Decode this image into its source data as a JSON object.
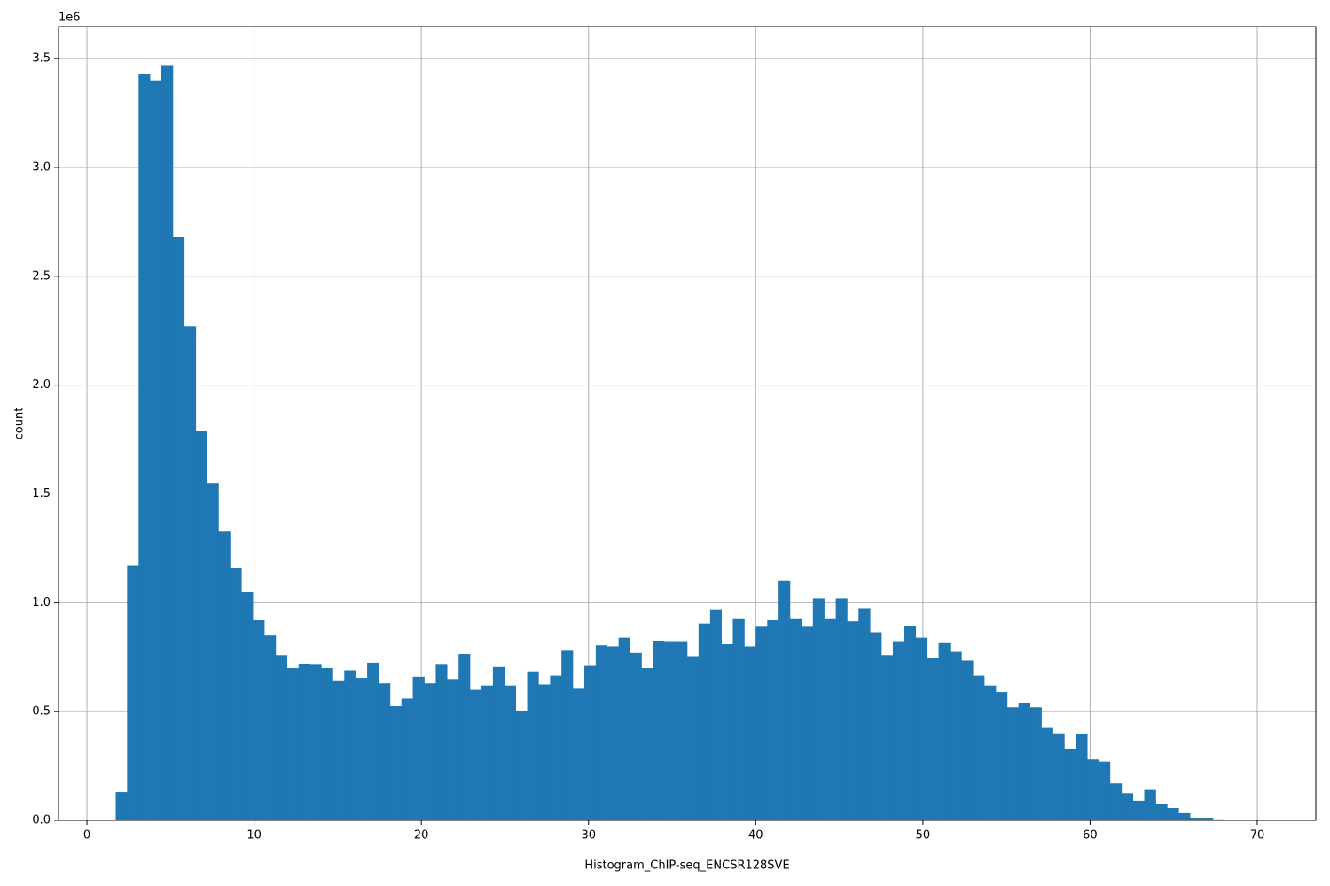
{
  "chart_data": {
    "type": "histogram",
    "x_label": "Histogram_ChIP-seq_ENCSR128SVE",
    "y_label": "count",
    "y_offset_text": "1e6",
    "color": "#1f77b4",
    "grid": true,
    "xlim": [
      -1.7,
      73.5
    ],
    "ylim": [
      0,
      3.647
    ],
    "xticks": [
      0,
      10,
      20,
      30,
      40,
      50,
      60,
      70
    ],
    "yticks": [
      {
        "value": 0,
        "label": "0.0"
      },
      0.5,
      {
        "value": 1,
        "label": "1.0"
      },
      1.5,
      {
        "value": 2,
        "label": "2.0"
      },
      2.5,
      {
        "value": 3,
        "label": "3.0"
      },
      3.5
    ],
    "bins": [
      1.72,
      2.4,
      3.09,
      3.77,
      4.45,
      5.14,
      5.82,
      6.51,
      7.19,
      7.87,
      8.56,
      9.24,
      9.92,
      10.61,
      11.29,
      11.97,
      12.66,
      13.34,
      14.02,
      14.71,
      15.39,
      16.08,
      16.76,
      17.44,
      18.13,
      18.81,
      19.49,
      20.18,
      20.86,
      21.54,
      22.23,
      22.91,
      23.6,
      24.28,
      24.96,
      25.65,
      26.33,
      27.01,
      27.7,
      28.38,
      29.06,
      29.75,
      30.43,
      31.11,
      31.8,
      32.48,
      33.17,
      33.85,
      34.53,
      35.22,
      35.9,
      36.58,
      37.27,
      37.95,
      38.63,
      39.32,
      40.0,
      40.69,
      41.37,
      42.05,
      42.74,
      43.42,
      44.1,
      44.79,
      45.47,
      46.15,
      46.84,
      47.52,
      48.2,
      48.89,
      49.57,
      50.26,
      50.94,
      51.62,
      52.31,
      52.99,
      53.67,
      54.36,
      55.04,
      55.72,
      56.41,
      57.09,
      57.78,
      58.46,
      59.14,
      59.83,
      60.51,
      61.19,
      61.88,
      62.56,
      63.24,
      63.93,
      64.61,
      65.3,
      65.98,
      66.66,
      67.35,
      68.03,
      68.71,
      69.4,
      70.08
    ],
    "values": [
      0.13,
      1.17,
      3.43,
      3.4,
      3.47,
      2.68,
      2.27,
      1.79,
      1.55,
      1.33,
      1.16,
      1.05,
      0.92,
      0.85,
      0.76,
      0.7,
      0.72,
      0.715,
      0.7,
      0.64,
      0.69,
      0.655,
      0.725,
      0.63,
      0.525,
      0.56,
      0.66,
      0.63,
      0.715,
      0.65,
      0.765,
      0.6,
      0.62,
      0.705,
      0.62,
      0.505,
      0.685,
      0.625,
      0.665,
      0.78,
      0.605,
      0.71,
      0.805,
      0.8,
      0.84,
      0.77,
      0.7,
      0.825,
      0.82,
      0.82,
      0.755,
      0.905,
      0.97,
      0.81,
      0.925,
      0.8,
      0.89,
      0.92,
      1.1,
      0.925,
      0.89,
      1.02,
      0.925,
      1.02,
      0.915,
      0.975,
      0.865,
      0.76,
      0.82,
      0.895,
      0.84,
      0.745,
      0.815,
      0.775,
      0.735,
      0.665,
      0.62,
      0.59,
      0.52,
      0.54,
      0.52,
      0.425,
      0.4,
      0.33,
      0.395,
      0.28,
      0.27,
      0.17,
      0.125,
      0.09,
      0.14,
      0.077,
      0.057,
      0.033,
      0.012,
      0.012,
      0.005,
      0.004,
      0.001,
      0.0005
    ]
  }
}
